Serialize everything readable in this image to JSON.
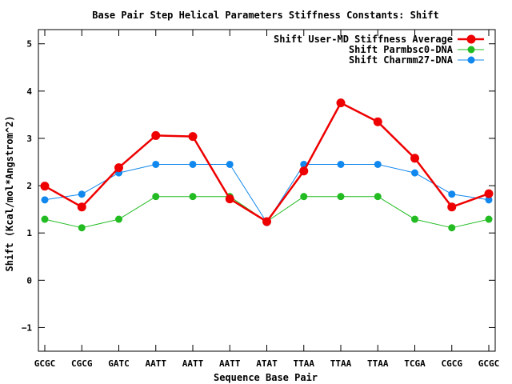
{
  "chart_data": {
    "type": "line",
    "title": "Base Pair Step Helical Parameters Stiffness Constants: Shift",
    "xlabel": "Sequence Base Pair",
    "ylabel": "Shift (Kcal/mol*Angstrom^2)",
    "categories": [
      "GCGC",
      "CGCG",
      "GATC",
      "AATT",
      "AATT",
      "AATT",
      "ATAT",
      "TTAA",
      "TTAA",
      "TTAA",
      "TCGA",
      "CGCG",
      "GCGC"
    ],
    "ylim": [
      -1.5,
      5.3
    ],
    "yticks": [
      -1,
      0,
      1,
      2,
      3,
      4,
      5
    ],
    "grid": false,
    "legend_position": "top-right",
    "series": [
      {
        "name": "Shift User-MD Stiffness Average",
        "color": "#ee0000",
        "values": [
          1.99,
          1.55,
          2.38,
          3.06,
          3.04,
          1.72,
          1.24,
          2.31,
          3.75,
          3.35,
          2.58,
          1.55,
          1.83
        ]
      },
      {
        "name": "Shift Parmbsc0-DNA",
        "color": "#22bb22",
        "values": [
          1.29,
          1.11,
          1.29,
          1.77,
          1.77,
          1.77,
          1.24,
          1.77,
          1.77,
          1.77,
          1.29,
          1.11,
          1.29
        ]
      },
      {
        "name": "Shift Charmm27-DNA",
        "color": "#1188ee",
        "values": [
          1.7,
          1.82,
          2.27,
          2.45,
          2.45,
          2.45,
          1.22,
          2.45,
          2.45,
          2.45,
          2.27,
          1.82,
          1.7
        ]
      }
    ]
  }
}
